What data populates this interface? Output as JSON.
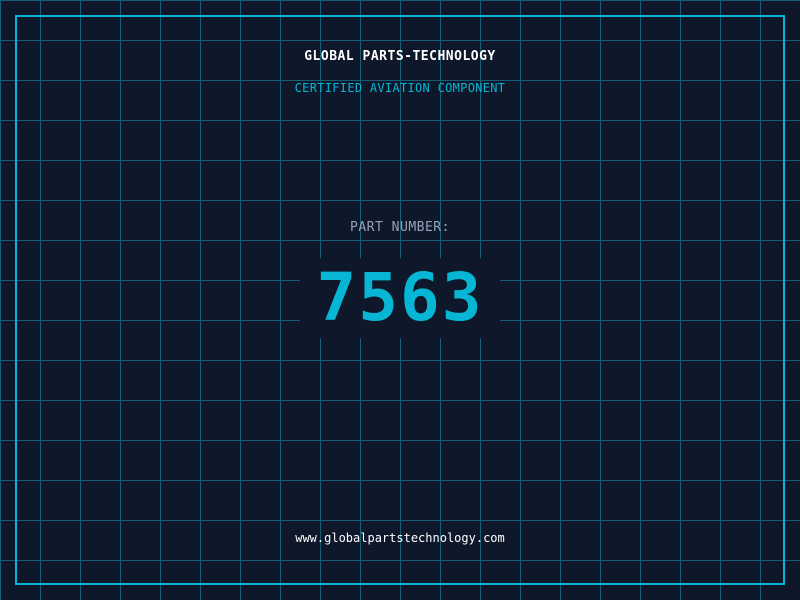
{
  "header": {
    "title": "GLOBAL PARTS-TECHNOLOGY",
    "subtitle": "CERTIFIED AVIATION COMPONENT"
  },
  "part": {
    "label": "PART NUMBER:",
    "number": "7563"
  },
  "footer": {
    "url": "www.globalpartstechnology.com"
  },
  "colors": {
    "background": "#0f172a",
    "grid": "#155e75",
    "accent": "#06b6d4"
  }
}
